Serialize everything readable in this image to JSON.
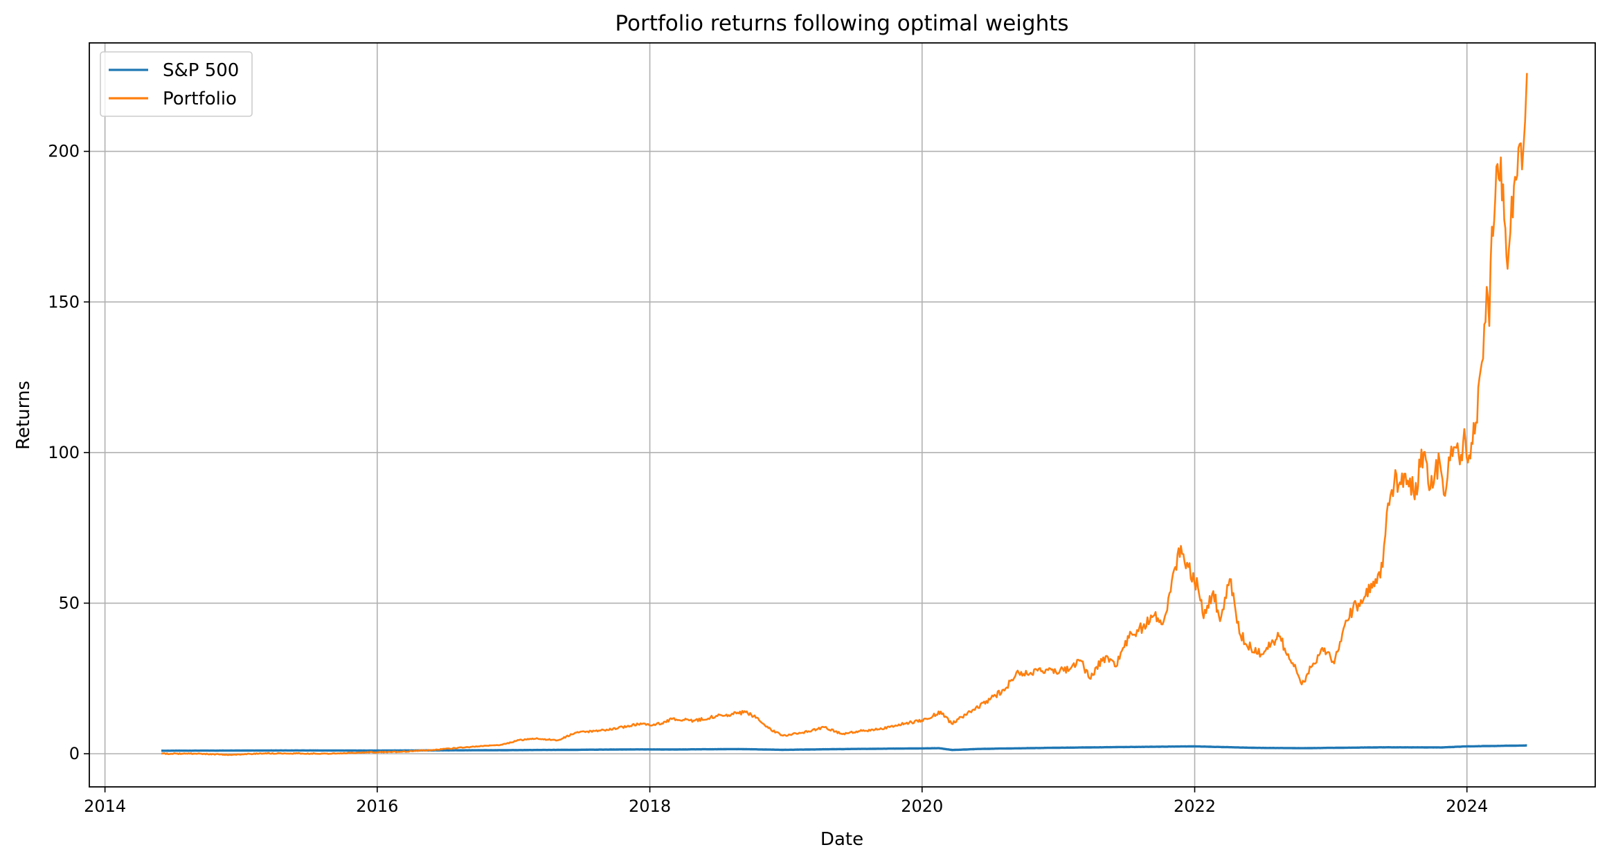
{
  "chart_data": {
    "type": "line",
    "title": "Portfolio returns following optimal weights",
    "xlabel": "Date",
    "ylabel": "Returns",
    "x_ticks": [
      "2014",
      "2016",
      "2018",
      "2020",
      "2022",
      "2024"
    ],
    "y_ticks": [
      "0",
      "50",
      "100",
      "150",
      "200"
    ],
    "xlim": [
      "2013-11-20",
      "2024-12-10"
    ],
    "ylim": [
      -11,
      236
    ],
    "grid": true,
    "legend_position": "upper-left",
    "series": [
      {
        "name": "S&P 500",
        "color": "#1f77b4",
        "points": [
          [
            "2014-06-01",
            1.0
          ],
          [
            "2014-12-01",
            1.05
          ],
          [
            "2015-06-01",
            1.1
          ],
          [
            "2015-12-01",
            1.05
          ],
          [
            "2016-06-01",
            1.12
          ],
          [
            "2016-12-01",
            1.18
          ],
          [
            "2017-06-01",
            1.3
          ],
          [
            "2017-12-01",
            1.45
          ],
          [
            "2018-03-01",
            1.42
          ],
          [
            "2018-09-01",
            1.55
          ],
          [
            "2018-12-24",
            1.3
          ],
          [
            "2019-06-01",
            1.55
          ],
          [
            "2019-12-01",
            1.75
          ],
          [
            "2020-02-15",
            1.85
          ],
          [
            "2020-03-23",
            1.25
          ],
          [
            "2020-06-01",
            1.6
          ],
          [
            "2020-12-01",
            1.95
          ],
          [
            "2021-06-01",
            2.2
          ],
          [
            "2021-12-31",
            2.45
          ],
          [
            "2022-06-15",
            1.95
          ],
          [
            "2022-10-12",
            1.85
          ],
          [
            "2022-12-31",
            1.95
          ],
          [
            "2023-06-01",
            2.15
          ],
          [
            "2023-10-27",
            2.1
          ],
          [
            "2023-12-31",
            2.45
          ],
          [
            "2024-06-10",
            2.75
          ]
        ]
      },
      {
        "name": "Portfolio",
        "color": "#ff7f0e",
        "points": [
          [
            "2014-06-01",
            0.0
          ],
          [
            "2014-09-01",
            0.0
          ],
          [
            "2014-12-01",
            -0.3
          ],
          [
            "2015-03-01",
            0.1
          ],
          [
            "2015-06-01",
            0.1
          ],
          [
            "2015-09-01",
            0.0
          ],
          [
            "2015-12-01",
            0.5
          ],
          [
            "2016-03-01",
            0.6
          ],
          [
            "2016-06-01",
            1.3
          ],
          [
            "2016-09-01",
            2.2
          ],
          [
            "2016-12-01",
            3.0
          ],
          [
            "2017-01-15",
            4.5
          ],
          [
            "2017-03-01",
            5.0
          ],
          [
            "2017-05-01",
            4.5
          ],
          [
            "2017-06-15",
            7.0
          ],
          [
            "2017-09-01",
            7.8
          ],
          [
            "2017-12-01",
            9.8
          ],
          [
            "2018-01-15",
            9.5
          ],
          [
            "2018-03-01",
            11.5
          ],
          [
            "2018-05-01",
            11.0
          ],
          [
            "2018-07-01",
            12.5
          ],
          [
            "2018-09-15",
            13.8
          ],
          [
            "2018-10-15",
            12.0
          ],
          [
            "2018-11-15",
            8.5
          ],
          [
            "2018-12-24",
            6.0
          ],
          [
            "2019-02-15",
            7.0
          ],
          [
            "2019-04-15",
            8.8
          ],
          [
            "2019-06-01",
            6.5
          ],
          [
            "2019-07-15",
            7.5
          ],
          [
            "2019-09-15",
            8.2
          ],
          [
            "2019-11-15",
            10.0
          ],
          [
            "2020-01-15",
            11.5
          ],
          [
            "2020-02-20",
            14.0
          ],
          [
            "2020-03-20",
            10.0
          ],
          [
            "2020-05-15",
            14.5
          ],
          [
            "2020-07-01",
            18.0
          ],
          [
            "2020-08-15",
            22.0
          ],
          [
            "2020-09-10",
            27.0
          ],
          [
            "2020-10-15",
            26.5
          ],
          [
            "2020-12-01",
            28.0
          ],
          [
            "2021-01-15",
            27.5
          ],
          [
            "2021-03-01",
            31.0
          ],
          [
            "2021-03-25",
            25.0
          ],
          [
            "2021-05-01",
            32.0
          ],
          [
            "2021-06-01",
            29.0
          ],
          [
            "2021-07-15",
            40.0
          ],
          [
            "2021-08-15",
            42.0
          ],
          [
            "2021-09-15",
            46.0
          ],
          [
            "2021-10-10",
            44.0
          ],
          [
            "2021-11-10",
            62.0
          ],
          [
            "2021-11-25",
            69.0
          ],
          [
            "2021-12-15",
            62.0
          ],
          [
            "2022-01-10",
            55.0
          ],
          [
            "2022-01-25",
            45.0
          ],
          [
            "2022-02-20",
            54.0
          ],
          [
            "2022-03-10",
            44.0
          ],
          [
            "2022-04-05",
            58.0
          ],
          [
            "2022-05-01",
            40.0
          ],
          [
            "2022-06-01",
            35.0
          ],
          [
            "2022-07-01",
            33.0
          ],
          [
            "2022-08-15",
            39.0
          ],
          [
            "2022-09-30",
            28.0
          ],
          [
            "2022-10-15",
            23.0
          ],
          [
            "2022-11-15",
            30.0
          ],
          [
            "2022-12-15",
            35.0
          ],
          [
            "2023-01-10",
            30.0
          ],
          [
            "2023-02-01",
            40.0
          ],
          [
            "2023-03-01",
            48.0
          ],
          [
            "2023-04-01",
            52.0
          ],
          [
            "2023-05-01",
            58.0
          ],
          [
            "2023-05-20",
            62.0
          ],
          [
            "2023-05-31",
            80.0
          ],
          [
            "2023-06-20",
            90.0
          ],
          [
            "2023-07-20",
            93.0
          ],
          [
            "2023-08-20",
            86.0
          ],
          [
            "2023-09-01",
            101.0
          ],
          [
            "2023-09-25",
            88.0
          ],
          [
            "2023-10-20",
            97.0
          ],
          [
            "2023-10-31",
            86.0
          ],
          [
            "2023-11-20",
            102.0
          ],
          [
            "2023-12-10",
            99.0
          ],
          [
            "2023-12-28",
            104.0
          ],
          [
            "2024-01-10",
            98.0
          ],
          [
            "2024-01-25",
            110.0
          ],
          [
            "2024-02-10",
            130.0
          ],
          [
            "2024-02-23",
            155.0
          ],
          [
            "2024-03-01",
            142.0
          ],
          [
            "2024-03-08",
            175.0
          ],
          [
            "2024-03-20",
            195.0
          ],
          [
            "2024-04-01",
            198.0
          ],
          [
            "2024-04-19",
            161.0
          ],
          [
            "2024-04-30",
            185.0
          ],
          [
            "2024-05-15",
            192.0
          ],
          [
            "2024-05-31",
            200.0
          ],
          [
            "2024-06-05",
            210.0
          ],
          [
            "2024-06-10",
            226.0
          ]
        ]
      }
    ]
  }
}
